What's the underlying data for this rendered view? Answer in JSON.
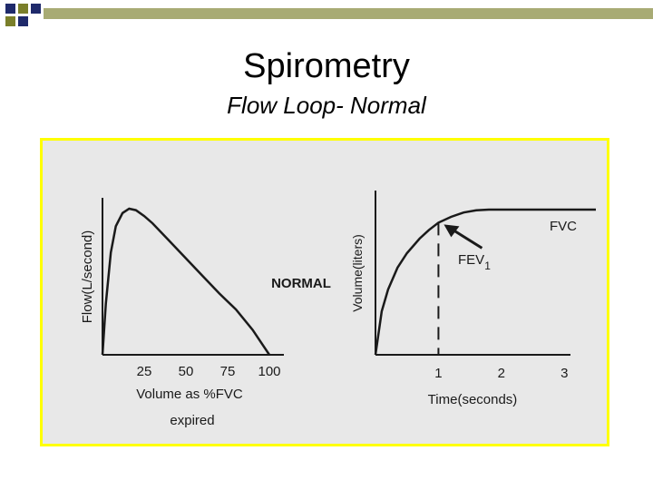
{
  "slide": {
    "title": "Spirometry",
    "subtitle": "Flow Loop- Normal"
  },
  "colors": {
    "deco_navy": "#1f2a6b",
    "deco_olive": "#7a7f2a",
    "frame_border": "#ffff00",
    "figure_bg": "#e8e8e8",
    "ink": "#1a1a1a"
  },
  "figure": {
    "center_label": "NORMAL"
  },
  "chart_data": [
    {
      "type": "line",
      "ylabel": "Flow(L/second)",
      "xlabel_lines": [
        "Volume as %FVC",
        "expired"
      ],
      "x_ticks": [
        "25",
        "50",
        "75",
        "100"
      ],
      "x_tick_values": [
        25,
        50,
        75,
        100
      ],
      "xlim": [
        0,
        100
      ],
      "ylim": [
        0,
        1
      ],
      "series": [
        {
          "x": [
            0,
            2,
            5,
            8,
            12,
            16,
            20,
            25,
            30,
            40,
            50,
            60,
            70,
            80,
            90,
            100
          ],
          "y": [
            0,
            0.35,
            0.7,
            0.88,
            0.97,
            1.0,
            0.99,
            0.95,
            0.9,
            0.78,
            0.66,
            0.54,
            0.42,
            0.31,
            0.17,
            0
          ]
        }
      ]
    },
    {
      "type": "line",
      "ylabel": "Volume(liters)",
      "xlabel": "Time(seconds)",
      "x_ticks": [
        "1",
        "2",
        "3"
      ],
      "x_tick_values": [
        1,
        2,
        3
      ],
      "xlim": [
        0,
        3.5
      ],
      "ylim": [
        0,
        1
      ],
      "series": [
        {
          "x": [
            0,
            0.1,
            0.2,
            0.35,
            0.5,
            0.7,
            0.85,
            1.0,
            1.2,
            1.4,
            1.6,
            1.8,
            2.0,
            3.5
          ],
          "y": [
            0,
            0.3,
            0.45,
            0.6,
            0.7,
            0.8,
            0.86,
            0.91,
            0.95,
            0.98,
            0.995,
            1.0,
            1.0,
            1.0
          ]
        }
      ],
      "annotations": {
        "fvc_label": "FVC",
        "fev_label": "FEV",
        "fev_subscript": "1",
        "fev1_time": 1,
        "fev1_volume": 0.91
      }
    }
  ]
}
